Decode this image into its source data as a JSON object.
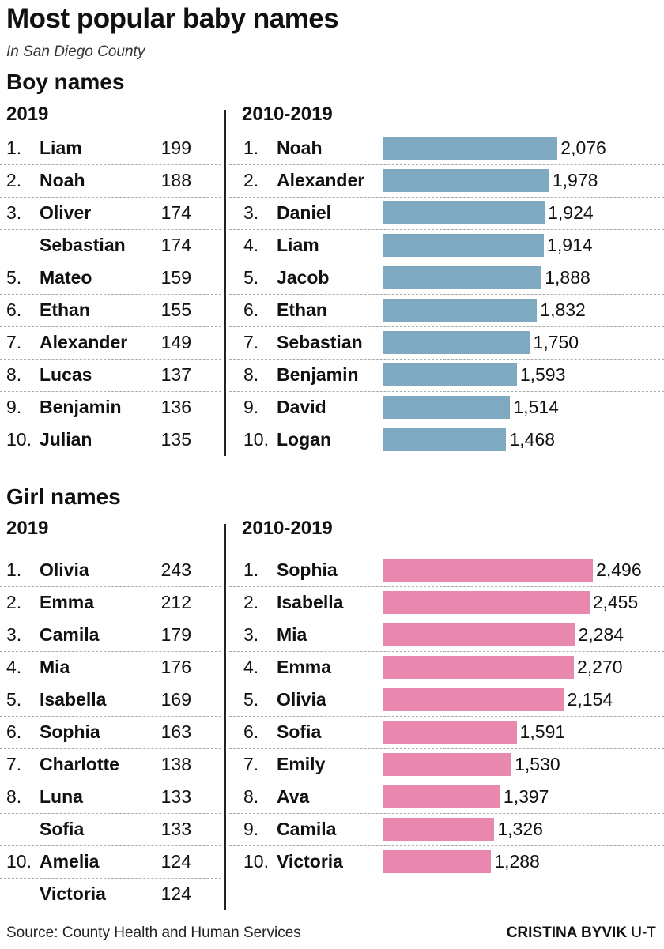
{
  "title": "Most popular baby names",
  "subtitle": "In San Diego County",
  "source": "Source: County Health and Human Services",
  "credit_name": "CRISTINA BYVIK",
  "credit_org": "U-T",
  "colors": {
    "boy_bar": "#7fa8c1",
    "girl_bar": "#e888ae"
  },
  "chart_data": [
    {
      "type": "table",
      "section": "Boy names",
      "column": "2019",
      "rows": [
        {
          "rank": "1.",
          "name": "Liam",
          "value": "199"
        },
        {
          "rank": "2.",
          "name": "Noah",
          "value": "188"
        },
        {
          "rank": "3.",
          "name": "Oliver",
          "value": "174"
        },
        {
          "rank": "",
          "name": "Sebastian",
          "value": "174"
        },
        {
          "rank": "5.",
          "name": "Mateo",
          "value": "159"
        },
        {
          "rank": "6.",
          "name": "Ethan",
          "value": "155"
        },
        {
          "rank": "7.",
          "name": "Alexander",
          "value": "149"
        },
        {
          "rank": "8.",
          "name": "Lucas",
          "value": "137"
        },
        {
          "rank": "9.",
          "name": "Benjamin",
          "value": "136"
        },
        {
          "rank": "10.",
          "name": "Julian",
          "value": "135"
        }
      ]
    },
    {
      "type": "bar",
      "section": "Boy names",
      "column": "2010-2019",
      "orientation": "horizontal",
      "rows": [
        {
          "rank": "1.",
          "name": "Noah",
          "value": 2076,
          "label": "2,076"
        },
        {
          "rank": "2.",
          "name": "Alexander",
          "value": 1978,
          "label": "1,978"
        },
        {
          "rank": "3.",
          "name": "Daniel",
          "value": 1924,
          "label": "1,924"
        },
        {
          "rank": "4.",
          "name": "Liam",
          "value": 1914,
          "label": "1,914"
        },
        {
          "rank": "5.",
          "name": "Jacob",
          "value": 1888,
          "label": "1,888"
        },
        {
          "rank": "6.",
          "name": "Ethan",
          "value": 1832,
          "label": "1,832"
        },
        {
          "rank": "7.",
          "name": "Sebastian",
          "value": 1750,
          "label": "1,750"
        },
        {
          "rank": "8.",
          "name": "Benjamin",
          "value": 1593,
          "label": "1,593"
        },
        {
          "rank": "9.",
          "name": "David",
          "value": 1514,
          "label": "1,514"
        },
        {
          "rank": "10.",
          "name": "Logan",
          "value": 1468,
          "label": "1,468"
        }
      ]
    },
    {
      "type": "table",
      "section": "Girl names",
      "column": "2019",
      "rows": [
        {
          "rank": "1.",
          "name": "Olivia",
          "value": "243"
        },
        {
          "rank": "2.",
          "name": "Emma",
          "value": "212"
        },
        {
          "rank": "3.",
          "name": "Camila",
          "value": "179"
        },
        {
          "rank": "4.",
          "name": "Mia",
          "value": "176"
        },
        {
          "rank": "5.",
          "name": "Isabella",
          "value": "169"
        },
        {
          "rank": "6.",
          "name": "Sophia",
          "value": "163"
        },
        {
          "rank": "7.",
          "name": "Charlotte",
          "value": "138"
        },
        {
          "rank": "8.",
          "name": "Luna",
          "value": "133"
        },
        {
          "rank": "",
          "name": "Sofia",
          "value": "133"
        },
        {
          "rank": "10.",
          "name": "Amelia",
          "value": "124"
        },
        {
          "rank": "",
          "name": "Victoria",
          "value": "124"
        }
      ]
    },
    {
      "type": "bar",
      "section": "Girl names",
      "column": "2010-2019",
      "orientation": "horizontal",
      "rows": [
        {
          "rank": "1.",
          "name": "Sophia",
          "value": 2496,
          "label": "2,496"
        },
        {
          "rank": "2.",
          "name": "Isabella",
          "value": 2455,
          "label": "2,455"
        },
        {
          "rank": "3.",
          "name": "Mia",
          "value": 2284,
          "label": "2,284"
        },
        {
          "rank": "4.",
          "name": "Emma",
          "value": 2270,
          "label": "2,270"
        },
        {
          "rank": "5.",
          "name": "Olivia",
          "value": 2154,
          "label": "2,154"
        },
        {
          "rank": "6.",
          "name": "Sofia",
          "value": 1591,
          "label": "1,591"
        },
        {
          "rank": "7.",
          "name": "Emily",
          "value": 1530,
          "label": "1,530"
        },
        {
          "rank": "8.",
          "name": "Ava",
          "value": 1397,
          "label": "1,397"
        },
        {
          "rank": "9.",
          "name": "Camila",
          "value": 1326,
          "label": "1,326"
        },
        {
          "rank": "10.",
          "name": "Victoria",
          "value": 1288,
          "label": "1,288"
        }
      ]
    }
  ]
}
